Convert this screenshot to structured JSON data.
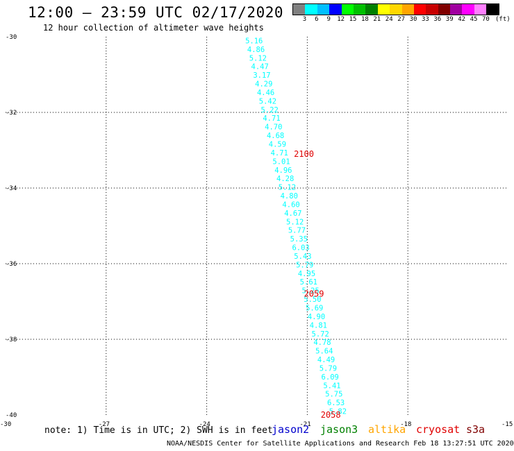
{
  "header": {
    "title": "12:00 – 23:59 UTC 02/17/2020",
    "subtitle": "12 hour collection of altimeter wave heights"
  },
  "legend": {
    "colors": [
      "#808080",
      "#00ffff",
      "#00bfff",
      "#0000ff",
      "#00ff00",
      "#00c000",
      "#008000",
      "#ffff00",
      "#ffd700",
      "#ffa500",
      "#ff0000",
      "#c80000",
      "#800000",
      "#a000a0",
      "#ff00ff",
      "#ff80ff",
      "#000000"
    ],
    "labels": [
      "3",
      "6",
      "9",
      "12",
      "15",
      "18",
      "21",
      "24",
      "27",
      "30",
      "33",
      "36",
      "39",
      "42",
      "45",
      "70",
      "(ft)"
    ]
  },
  "chart_data": {
    "type": "scatter",
    "xlim": [
      -30,
      -15
    ],
    "ylim": [
      -40,
      -30
    ],
    "x_ticks": [
      "-30",
      "-27",
      "-24",
      "-21",
      "-18",
      "-15"
    ],
    "y_ticks": [
      "-30",
      "-32",
      "-34",
      "-36",
      "-38",
      "-40"
    ],
    "grid": true,
    "swh_ft": [
      "5.16",
      "4.86",
      "5.12",
      "4.47",
      "3.17",
      "4.29",
      "4.46",
      "5.42",
      "5.22",
      "4.71",
      "4.70",
      "4.68",
      "4.59",
      "4.71",
      "5.01",
      "4.96",
      "4.28",
      "5.12",
      "4.80",
      "4.60",
      "4.67",
      "5.12",
      "5.77",
      "5.35",
      "6.03",
      "5.43",
      "5.79",
      "4.95",
      "5.61",
      "5.25",
      "5.50",
      "5.69",
      "4.90",
      "4.81",
      "5.72",
      "4.78",
      "5.64",
      "4.49",
      "5.79",
      "6.09",
      "5.41",
      "5.75",
      "6.53",
      "5.82"
    ],
    "swh_color": "#00ffff",
    "time_labels": [
      {
        "text": "2100",
        "lon": -21.4,
        "lat": -33.1
      },
      {
        "text": "2059",
        "lon": -21.1,
        "lat": -36.8
      },
      {
        "text": "2058",
        "lon": -20.6,
        "lat": -40.0
      }
    ],
    "time_color": "#e00000"
  },
  "footer": {
    "note": "note: 1) Time is in UTC; 2) SWH is in feet",
    "satellites": [
      {
        "name": "jason2",
        "color": "#0000cd"
      },
      {
        "name": "jason3",
        "color": "#008000"
      },
      {
        "name": "altika",
        "color": "#ffa500"
      },
      {
        "name": "cryosat",
        "color": "#e00000"
      },
      {
        "name": "s3a",
        "color": "#800000"
      }
    ],
    "credit": "NOAA/NESDIS Center for Satellite Applications and Research    Feb 18 13:27:51 UTC 2020"
  }
}
